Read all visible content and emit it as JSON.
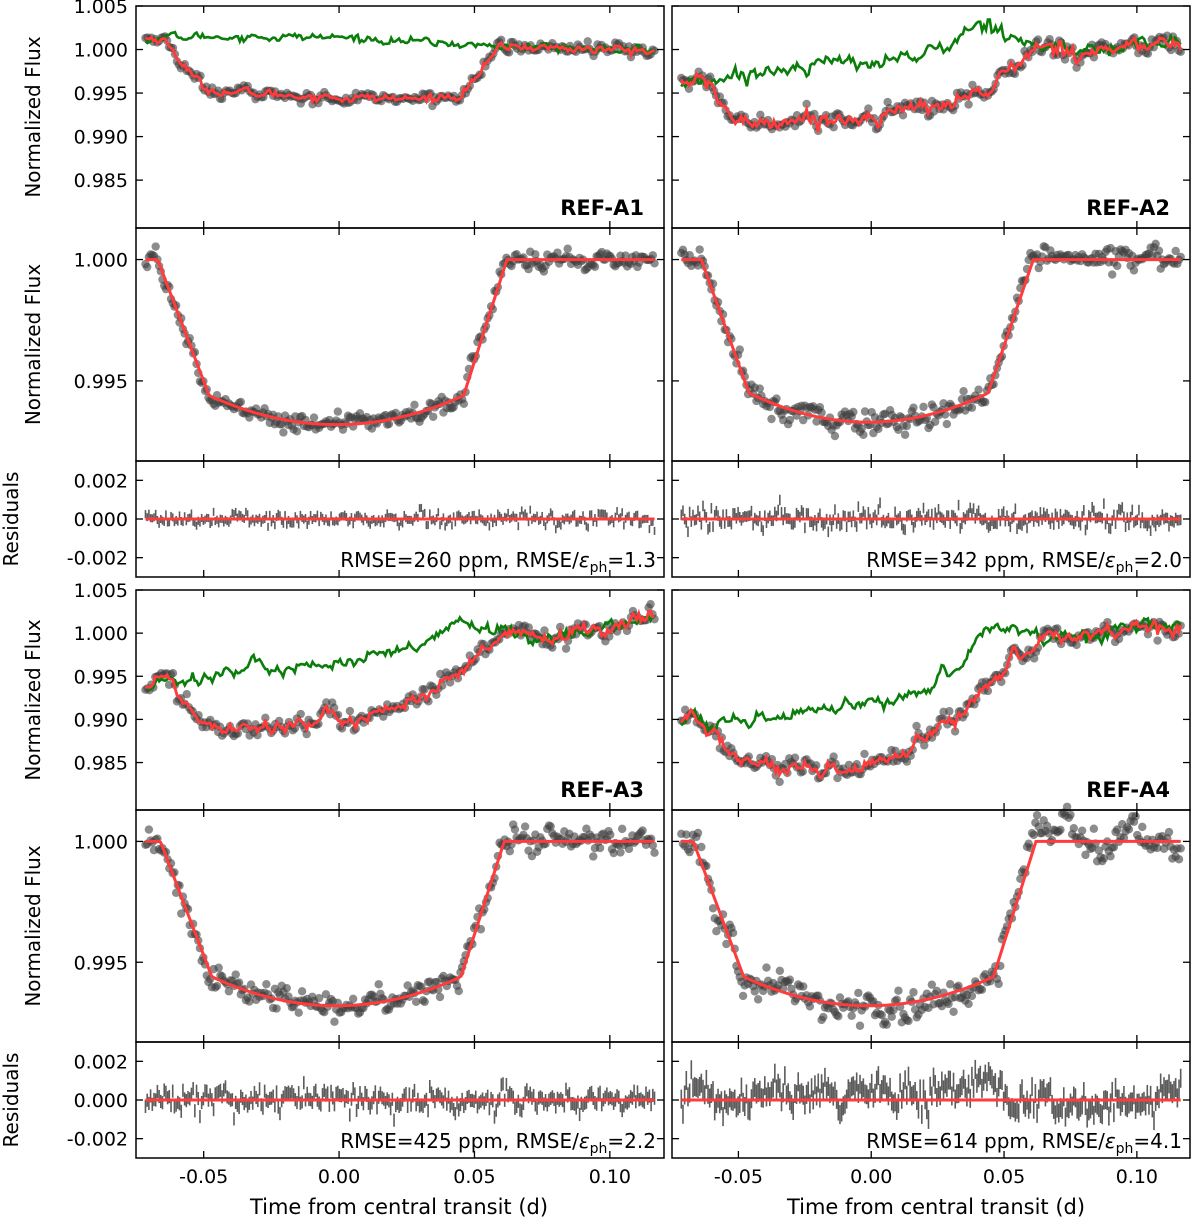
{
  "figure": {
    "xlabel": "Time from central transit (d)",
    "flux_ylabel": "Normalized Flux",
    "resid_ylabel": "Residuals",
    "colors": {
      "data": "#404040",
      "model": "#ff3b3b",
      "raw": "#0b7d0b"
    }
  },
  "chart_data": [
    {
      "type": "scatter",
      "name": "REF-A1",
      "xlim": [
        -0.075,
        0.12
      ],
      "xticks": [
        "-0.05",
        "0.00",
        "0.05",
        "0.10"
      ],
      "raw": {
        "ylim": [
          0.9795,
          1.005
        ],
        "yticks": [
          "1.005",
          "1.000",
          "0.995",
          "0.990",
          "0.985"
        ],
        "label": "REF-A1",
        "comparison_curve": [
          [
            -0.07,
            1.0013
          ],
          [
            -0.05,
            1.0015
          ],
          [
            0.0,
            1.0014
          ],
          [
            0.03,
            1.0009
          ],
          [
            0.05,
            1.0005
          ],
          [
            0.06,
            1.0004
          ],
          [
            0.116,
            0.9999
          ]
        ],
        "model_curve": [
          [
            -0.07,
            1.0013
          ],
          [
            -0.065,
            1.0012
          ],
          [
            -0.05,
            0.9955
          ],
          [
            -0.04,
            0.9951
          ],
          [
            0.0,
            0.9945
          ],
          [
            0.03,
            0.9943
          ],
          [
            0.045,
            0.9948
          ],
          [
            0.06,
            1.0004
          ],
          [
            0.116,
            0.9998
          ]
        ]
      },
      "detrended": {
        "ylim": [
          0.9917,
          1.0013
        ],
        "yticks": [
          "1.000",
          "0.995"
        ],
        "depth": 0.0067,
        "t1": -0.067,
        "t2": -0.048,
        "t3": 0.046,
        "t4": 0.062
      },
      "residuals": {
        "ylim": [
          -0.003,
          0.003
        ],
        "yticks": [
          "0.002",
          "0.000",
          "-0.002"
        ],
        "rmse_ppm": 260,
        "ratio": 1.3,
        "rmse_label": "RMSE=260 ppm, RMSE/",
        "eps": "ε",
        "eps_sub": "ph",
        "ratio_label": "=1.3"
      }
    },
    {
      "type": "scatter",
      "name": "REF-A2",
      "xlim": [
        -0.075,
        0.12
      ],
      "xticks": [
        "-0.05",
        "0.00",
        "0.05",
        "0.10"
      ],
      "raw": {
        "ylim": [
          0.9795,
          1.005
        ],
        "label": "REF-A2",
        "comparison_curve": [
          [
            -0.07,
            0.9962
          ],
          [
            -0.065,
            0.9968
          ],
          [
            -0.06,
            0.9965
          ],
          [
            -0.04,
            0.9975
          ],
          [
            -0.02,
            0.9985
          ],
          [
            0.0,
            0.9985
          ],
          [
            0.02,
            0.9995
          ],
          [
            0.03,
            1.0005
          ],
          [
            0.04,
            1.003
          ],
          [
            0.05,
            1.0025
          ],
          [
            0.055,
            1.0015
          ],
          [
            0.06,
            1.0005
          ],
          [
            0.08,
            0.9998
          ],
          [
            0.1,
            1.0004
          ],
          [
            0.116,
            1.0008
          ]
        ],
        "model_curve": [
          [
            -0.07,
            0.9962
          ],
          [
            -0.065,
            0.9968
          ],
          [
            -0.05,
            0.9915
          ],
          [
            -0.03,
            0.992
          ],
          [
            -0.01,
            0.992
          ],
          [
            0.01,
            0.9928
          ],
          [
            0.03,
            0.994
          ],
          [
            0.045,
            0.9955
          ],
          [
            0.055,
            0.9985
          ],
          [
            0.065,
            1.0005
          ],
          [
            0.08,
            0.9998
          ],
          [
            0.1,
            1.0004
          ],
          [
            0.116,
            1.0008
          ]
        ]
      },
      "detrended": {
        "ylim": [
          0.9917,
          1.0013
        ],
        "yticks": [
          "1.000",
          "0.995"
        ],
        "depth": 0.0066,
        "t1": -0.064,
        "t2": -0.046,
        "t3": 0.044,
        "t4": 0.061
      },
      "residuals": {
        "ylim": [
          -0.003,
          0.003
        ],
        "yticks": [
          "0.002",
          "0.000",
          "-0.002"
        ],
        "rmse_ppm": 342,
        "ratio": 2.0,
        "rmse_label": "RMSE=342 ppm, RMSE/",
        "eps": "ε",
        "eps_sub": "ph",
        "ratio_label": "=2.0"
      }
    },
    {
      "type": "scatter",
      "name": "REF-A3",
      "xlim": [
        -0.075,
        0.12
      ],
      "xticks": [
        "-0.05",
        "0.00",
        "0.05",
        "0.10"
      ],
      "raw": {
        "ylim": [
          0.9795,
          1.005
        ],
        "yticks": [
          "1.005",
          "1.000",
          "0.995",
          "0.990",
          "0.985"
        ],
        "label": "REF-A3",
        "comparison_curve": [
          [
            -0.072,
            0.994
          ],
          [
            -0.065,
            0.9952
          ],
          [
            -0.06,
            0.9945
          ],
          [
            -0.04,
            0.9955
          ],
          [
            -0.02,
            0.9962
          ],
          [
            0.0,
            0.9965
          ],
          [
            0.02,
            0.9975
          ],
          [
            0.035,
            0.999
          ],
          [
            0.045,
            1.0015
          ],
          [
            0.055,
            1.0005
          ],
          [
            0.065,
            0.9998
          ],
          [
            0.08,
            0.9995
          ],
          [
            0.1,
            1.0008
          ],
          [
            0.116,
            1.002
          ]
        ],
        "model_curve": [
          [
            -0.072,
            0.994
          ],
          [
            -0.065,
            0.9952
          ],
          [
            -0.05,
            0.9895
          ],
          [
            -0.03,
            0.9893
          ],
          [
            -0.01,
            0.9895
          ],
          [
            0.01,
            0.9905
          ],
          [
            0.03,
            0.9925
          ],
          [
            0.045,
            0.995
          ],
          [
            0.055,
            0.9985
          ],
          [
            0.065,
            0.9998
          ],
          [
            0.08,
            0.9995
          ],
          [
            0.1,
            1.0008
          ],
          [
            0.116,
            1.002
          ]
        ]
      },
      "detrended": {
        "ylim": [
          0.9917,
          1.0013
        ],
        "yticks": [
          "1.000",
          "0.995"
        ],
        "depth": 0.0067,
        "t1": -0.066,
        "t2": -0.047,
        "t3": 0.045,
        "t4": 0.061
      },
      "residuals": {
        "ylim": [
          -0.003,
          0.003
        ],
        "yticks": [
          "0.002",
          "0.000",
          "-0.002"
        ],
        "rmse_ppm": 425,
        "ratio": 2.2,
        "rmse_label": "RMSE=425 ppm, RMSE/",
        "eps": "ε",
        "eps_sub": "ph",
        "ratio_label": "=2.2"
      }
    },
    {
      "type": "scatter",
      "name": "REF-A4",
      "xlim": [
        -0.075,
        0.12
      ],
      "xticks": [
        "-0.05",
        "0.00",
        "0.05",
        "0.10"
      ],
      "raw": {
        "ylim": [
          0.9795,
          1.005
        ],
        "label": "REF-A4",
        "comparison_curve": [
          [
            -0.072,
            0.9893
          ],
          [
            -0.068,
            0.9905
          ],
          [
            -0.06,
            0.989
          ],
          [
            -0.04,
            0.9898
          ],
          [
            -0.02,
            0.991
          ],
          [
            0.0,
            0.9915
          ],
          [
            0.02,
            0.9935
          ],
          [
            0.035,
            0.997
          ],
          [
            0.045,
            1.001
          ],
          [
            0.055,
            1.0005
          ],
          [
            0.065,
            0.9995
          ],
          [
            0.08,
            0.9998
          ],
          [
            0.1,
            1.0008
          ],
          [
            0.116,
            1.001
          ]
        ],
        "model_curve": [
          [
            -0.072,
            0.9893
          ],
          [
            -0.068,
            0.9905
          ],
          [
            -0.05,
            0.9855
          ],
          [
            -0.03,
            0.9838
          ],
          [
            -0.01,
            0.9838
          ],
          [
            0.01,
            0.9855
          ],
          [
            0.03,
            0.9895
          ],
          [
            0.045,
            0.9945
          ],
          [
            0.055,
            0.9975
          ],
          [
            0.065,
            0.9995
          ],
          [
            0.08,
            0.9998
          ],
          [
            0.1,
            1.0008
          ],
          [
            0.116,
            1.001
          ]
        ]
      },
      "detrended": {
        "ylim": [
          0.9917,
          1.0013
        ],
        "yticks": [
          "1.000",
          "0.995"
        ],
        "depth": 0.0067,
        "t1": -0.067,
        "t2": -0.048,
        "t3": 0.046,
        "t4": 0.062
      },
      "residuals": {
        "ylim": [
          -0.003,
          0.003
        ],
        "yticks": [
          "0.002",
          "0.000",
          "-0.002"
        ],
        "rmse_ppm": 614,
        "ratio": 4.1,
        "rmse_label": "RMSE=614 ppm, RMSE/",
        "eps": "ε",
        "eps_sub": "ph",
        "ratio_label": "=4.1"
      }
    }
  ]
}
